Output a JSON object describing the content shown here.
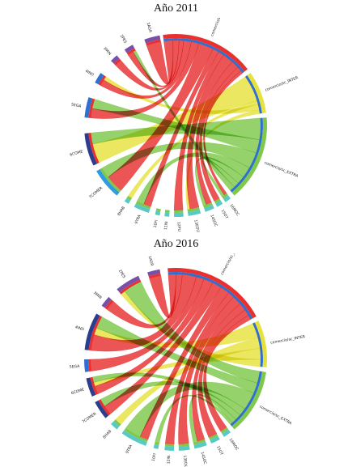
{
  "chart_data": [
    {
      "type": "chord",
      "title": "Año 2011",
      "colors": {
        "INTRA": "#e8302f",
        "INTER": "#e6e23d",
        "EXTRA": "#7fc84a",
        "blue": "#2f6fd1",
        "purple": "#7a4fa8",
        "teal": "#58c9c3",
        "navy": "#2b3d8f"
      },
      "segments": [
        {
          "id": "INTRA",
          "label": "comercio/sc_INTRA",
          "start": -8,
          "end": 52,
          "band": "#e8302f",
          "inner": "#2f6fd1"
        },
        {
          "id": "INTER",
          "label": "comercio/sc_INTER",
          "start": 55,
          "end": 82,
          "band": "#e6e23d",
          "inner": "#2f6fd1"
        },
        {
          "id": "EXTRA",
          "label": "comercio/sc_EXTRA",
          "start": 85,
          "end": 140,
          "band": "#7fc84a",
          "inner": "#2f6fd1"
        },
        {
          "id": "16MOC",
          "label": "16MOC",
          "start": 143,
          "end": 147,
          "band": "#58c9c3",
          "inner": "#7fc84a"
        },
        {
          "id": "15OT",
          "label": "15OT",
          "start": 149,
          "end": 153,
          "band": "#58c9c3",
          "inner": "#7fc84a"
        },
        {
          "id": "14SOC",
          "label": "14SOC",
          "start": 155,
          "end": 161,
          "band": "#58c9c3",
          "inner": "#7fc84a"
        },
        {
          "id": "13EDU",
          "label": "13EDU",
          "start": 164,
          "end": 172,
          "band": "#58c9c3",
          "inner": "#7fc84a"
        },
        {
          "id": "12PU",
          "label": "12PU",
          "start": 175,
          "end": 181,
          "band": "#58c9c3",
          "inner": "#7fc84a"
        },
        {
          "id": "11IN",
          "label": "11IN",
          "start": 184,
          "end": 187,
          "band": "#58c9c3",
          "inner": "#7fc84a"
        },
        {
          "id": "10FI",
          "label": "10FI",
          "start": 190,
          "end": 193,
          "band": "#58c9c3",
          "inner": "#7fc84a"
        },
        {
          "id": "9TRA",
          "label": "9TRA",
          "start": 197,
          "end": 207,
          "band": "#58c9c3",
          "inner": "#7fc84a"
        },
        {
          "id": "8HAB",
          "label": "8HAB",
          "start": 211,
          "end": 214,
          "band": "#58c9c3",
          "inner": "#7fc84a"
        },
        {
          "id": "7COMER",
          "label": "7COMER",
          "start": 220,
          "end": 240,
          "band": "#2f9be0",
          "inner": "#7fc84a"
        },
        {
          "id": "6COME",
          "label": "6COME",
          "start": 244,
          "end": 265,
          "band": "#2b3d8f",
          "inner": "#e8302f"
        },
        {
          "id": "5EGA",
          "label": "5EGA",
          "start": 275,
          "end": 288,
          "band": "#2f6fd1",
          "inner": "#e8302f"
        },
        {
          "id": "4IND",
          "label": "4IND",
          "start": 298,
          "end": 305,
          "band": "#2f6fd1",
          "inner": "#e8302f"
        },
        {
          "id": "3MIN",
          "label": "3MIN",
          "start": 315,
          "end": 320,
          "band": "#7a4fa8",
          "inner": "#e8302f"
        },
        {
          "id": "2PES",
          "label": "2PES",
          "start": 326,
          "end": 332,
          "band": "#7a4fa8",
          "inner": "#e8302f"
        },
        {
          "id": "1AGR",
          "label": "1AGR",
          "start": 340,
          "end": 350,
          "band": "#7a4fa8",
          "inner": "#e8302f"
        }
      ],
      "flows": [
        {
          "source": "INTRA",
          "target": "1AGR",
          "width": 6,
          "color": "#e8302f"
        },
        {
          "source": "INTRA",
          "target": "2PES",
          "width": 4,
          "color": "#e8302f"
        },
        {
          "source": "INTRA",
          "target": "3MIN",
          "width": 3,
          "color": "#e8302f"
        },
        {
          "source": "INTRA",
          "target": "4IND",
          "width": 5,
          "color": "#e8302f"
        },
        {
          "source": "INTRA",
          "target": "5EGA",
          "width": 5,
          "color": "#e8302f"
        },
        {
          "source": "INTRA",
          "target": "7COMER",
          "width": 10,
          "color": "#e8302f"
        },
        {
          "source": "INTRA",
          "target": "9TRA",
          "width": 4,
          "color": "#e8302f"
        },
        {
          "source": "INTRA",
          "target": "12PU",
          "width": 4,
          "color": "#e8302f"
        },
        {
          "source": "INTRA",
          "target": "13EDU",
          "width": 7,
          "color": "#e8302f"
        },
        {
          "source": "INTRA",
          "target": "14SOC",
          "width": 5,
          "color": "#e8302f"
        },
        {
          "source": "INTRA",
          "target": "15OT",
          "width": 3,
          "color": "#e8302f"
        },
        {
          "source": "INTRA",
          "target": "16MOC",
          "width": 2,
          "color": "#e8302f"
        },
        {
          "source": "INTER",
          "target": "6COME",
          "width": 14,
          "color": "#e6e23d"
        },
        {
          "source": "INTER",
          "target": "8HAB",
          "width": 2,
          "color": "#e6e23d"
        },
        {
          "source": "INTER",
          "target": "4IND",
          "width": 3,
          "color": "#e6e23d"
        },
        {
          "source": "INTER",
          "target": "13EDU",
          "width": 2,
          "color": "#e6e23d"
        },
        {
          "source": "EXTRA",
          "target": "6COME",
          "width": 8,
          "color": "#7fc84a"
        },
        {
          "source": "EXTRA",
          "target": "5EGA",
          "width": 5,
          "color": "#7fc84a"
        },
        {
          "source": "EXTRA",
          "target": "7COMER",
          "width": 6,
          "color": "#7fc84a"
        },
        {
          "source": "EXTRA",
          "target": "9TRA",
          "width": 4,
          "color": "#7fc84a"
        },
        {
          "source": "EXTRA",
          "target": "14SOC",
          "width": 3,
          "color": "#7fc84a"
        },
        {
          "source": "EXTRA",
          "target": "16MOC",
          "width": 2,
          "color": "#7fc84a"
        },
        {
          "source": "EXTRA",
          "target": "2PES",
          "width": 2,
          "color": "#7fc84a"
        }
      ]
    },
    {
      "type": "chord",
      "title": "Año 2016",
      "colors": {
        "INTRA": "#e8302f",
        "INTER": "#e6e23d",
        "EXTRA": "#7fc84a",
        "blue": "#2f6fd1",
        "purple": "#7a4fa8",
        "teal": "#58c9c3",
        "navy": "#2b3d8f"
      },
      "segments": [
        {
          "id": "INTRA",
          "label": "comercio/sc_INTRA",
          "start": -5,
          "end": 62,
          "band": "#e8302f",
          "inner": "#2f6fd1"
        },
        {
          "id": "INTER",
          "label": "comercio/sc_INTER",
          "start": 65,
          "end": 95,
          "band": "#e6e23d",
          "inner": "#2f6fd1"
        },
        {
          "id": "EXTRA",
          "label": "comercio/sc_EXTRA",
          "start": 98,
          "end": 140,
          "band": "#7fc84a",
          "inner": "#2f6fd1"
        },
        {
          "id": "16MOC",
          "label": "16MOC",
          "start": 143,
          "end": 148,
          "band": "#58c9c3",
          "inner": "#7fc84a"
        },
        {
          "id": "15OT",
          "label": "15OT",
          "start": 151,
          "end": 157,
          "band": "#58c9c3",
          "inner": "#7fc84a"
        },
        {
          "id": "14SOC",
          "label": "14SOC",
          "start": 160,
          "end": 168,
          "band": "#58c9c3",
          "inner": "#7fc84a"
        },
        {
          "id": "13EDU",
          "label": "13EDU",
          "start": 171,
          "end": 178,
          "band": "#58c9c3",
          "inner": "#7fc84a"
        },
        {
          "id": "12IN",
          "label": "12IN",
          "start": 181,
          "end": 187,
          "band": "#58c9c3",
          "inner": "#7fc84a"
        },
        {
          "id": "10FI",
          "label": "10FI",
          "start": 191,
          "end": 194,
          "band": "#58c9c3",
          "inner": "#7fc84a"
        },
        {
          "id": "9TRA",
          "label": "9TRA",
          "start": 199,
          "end": 216,
          "band": "#58c9c3",
          "inner": "#7fc84a"
        },
        {
          "id": "8HAB",
          "label": "8HAB",
          "start": 220,
          "end": 225,
          "band": "#58c9c3",
          "inner": "#7fc84a"
        },
        {
          "id": "7COMER",
          "label": "7COMER",
          "start": 230,
          "end": 242,
          "band": "#2b3d8f",
          "inner": "#e8302f"
        },
        {
          "id": "6COME",
          "label": "6COME",
          "start": 246,
          "end": 258,
          "band": "#2b3d8f",
          "inner": "#e8302f"
        },
        {
          "id": "5EGA",
          "label": "5EGA",
          "start": 262,
          "end": 270,
          "band": "#2f6fd1",
          "inner": "#e8302f"
        },
        {
          "id": "4IND",
          "label": "4IND",
          "start": 276,
          "end": 300,
          "band": "#2b3d8f",
          "inner": "#e8302f"
        },
        {
          "id": "3MIN",
          "label": "3MIN",
          "start": 306,
          "end": 313,
          "band": "#7a4fa8",
          "inner": "#e8302f"
        },
        {
          "id": "2PES",
          "label": "2PES",
          "start": 320,
          "end": 336,
          "band": "#7a4fa8",
          "inner": "#e8302f"
        },
        {
          "id": "1AGR",
          "label": "1AGR",
          "start": 342,
          "end": 350,
          "band": "#7a4fa8",
          "inner": "#e8302f"
        }
      ],
      "flows": [
        {
          "source": "INTRA",
          "target": "1AGR",
          "width": 5,
          "color": "#e8302f"
        },
        {
          "source": "INTRA",
          "target": "3MIN",
          "width": 4,
          "color": "#e8302f"
        },
        {
          "source": "INTRA",
          "target": "4IND",
          "width": 9,
          "color": "#e8302f"
        },
        {
          "source": "INTRA",
          "target": "5EGA",
          "width": 5,
          "color": "#e8302f"
        },
        {
          "source": "INTRA",
          "target": "6COME",
          "width": 6,
          "color": "#e8302f"
        },
        {
          "source": "INTRA",
          "target": "7COMER",
          "width": 6,
          "color": "#e8302f"
        },
        {
          "source": "INTRA",
          "target": "9TRA",
          "width": 6,
          "color": "#e8302f"
        },
        {
          "source": "INTRA",
          "target": "12IN",
          "width": 4,
          "color": "#e8302f"
        },
        {
          "source": "INTRA",
          "target": "13EDU",
          "width": 6,
          "color": "#e8302f"
        },
        {
          "source": "INTRA",
          "target": "14SOC",
          "width": 5,
          "color": "#e8302f"
        },
        {
          "source": "INTRA",
          "target": "15OT",
          "width": 4,
          "color": "#e8302f"
        },
        {
          "source": "INTRA",
          "target": "16MOC",
          "width": 3,
          "color": "#e8302f"
        },
        {
          "source": "INTER",
          "target": "4IND",
          "width": 4,
          "color": "#e6e23d"
        },
        {
          "source": "INTER",
          "target": "8HAB",
          "width": 3,
          "color": "#e6e23d"
        },
        {
          "source": "INTER",
          "target": "6COME",
          "width": 3,
          "color": "#e6e23d"
        },
        {
          "source": "INTER",
          "target": "2PES",
          "width": 2,
          "color": "#e6e23d"
        },
        {
          "source": "EXTRA",
          "target": "2PES",
          "width": 8,
          "color": "#7fc84a"
        },
        {
          "source": "EXTRA",
          "target": "4IND",
          "width": 7,
          "color": "#7fc84a"
        },
        {
          "source": "EXTRA",
          "target": "9TRA",
          "width": 12,
          "color": "#7fc84a"
        },
        {
          "source": "EXTRA",
          "target": "7COMER",
          "width": 5,
          "color": "#7fc84a"
        },
        {
          "source": "EXTRA",
          "target": "6COME",
          "width": 4,
          "color": "#7fc84a"
        },
        {
          "source": "EXTRA",
          "target": "14SOC",
          "width": 3,
          "color": "#7fc84a"
        },
        {
          "source": "EXTRA",
          "target": "10FI",
          "width": 2,
          "color": "#7fc84a"
        }
      ]
    }
  ]
}
